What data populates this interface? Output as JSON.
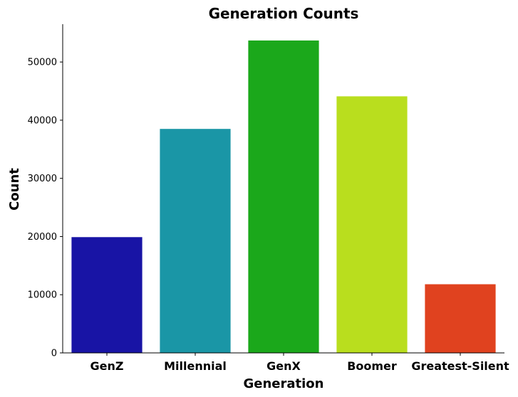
{
  "chart_data": {
    "type": "bar",
    "title": "Generation Counts",
    "xlabel": "Generation",
    "ylabel": "Count",
    "categories": [
      "GenZ",
      "Millennial",
      "GenX",
      "Boomer",
      "Greatest-Silent"
    ],
    "values": [
      19900,
      38500,
      53700,
      44100,
      11800
    ],
    "colors": [
      "#1814a5",
      "#1a96a6",
      "#1ba81b",
      "#b9de1e",
      "#e0421f"
    ],
    "ylim": [
      0,
      56500
    ],
    "yticks": [
      0,
      10000,
      20000,
      30000,
      40000,
      50000
    ],
    "ytick_labels": [
      "0",
      "10000",
      "20000",
      "30000",
      "40000",
      "50000"
    ],
    "grid": false,
    "legend": "none"
  }
}
